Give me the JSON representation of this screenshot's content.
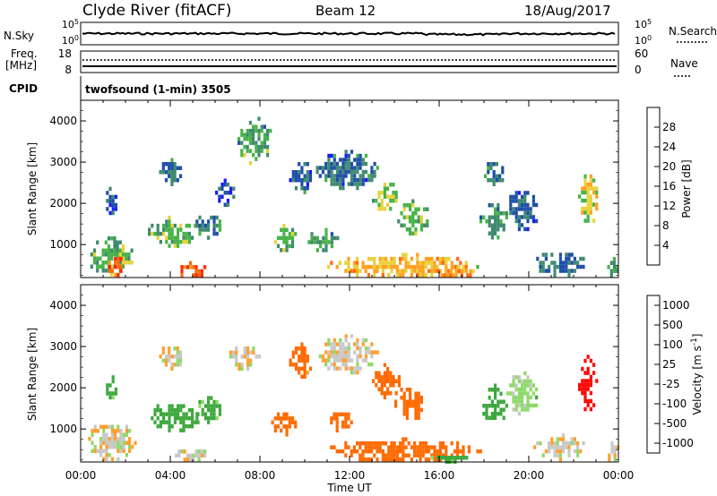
{
  "header": {
    "station": "Clyde River (fitACF)",
    "beam": "Beam 12",
    "date": "18/Aug/2017"
  },
  "strip_labels": {
    "nsky": "N.Sky",
    "nsearch": "N.Search",
    "freq": "Freq.",
    "freq_unit": "[MHz]",
    "nave": "Nave",
    "cpid": "CPID",
    "cpid_value": "twofsound (1-min) 3505",
    "nsky_ticks": [
      "10^5",
      "10^0"
    ],
    "nsearch_ticks": [
      "10^5",
      "10^0"
    ],
    "freq_ticks": [
      "18",
      "8"
    ],
    "nave_ticks": [
      "60",
      "0"
    ]
  },
  "colors": {
    "power": [
      "#1a1aff",
      "#1e4fa8",
      "#3f8a6e",
      "#47b347",
      "#e8d23a",
      "#ffa020",
      "#ff6a10",
      "#ff2a0a"
    ],
    "velocity": [
      "#ff0000",
      "#ff6a00",
      "#ffa030",
      "#c8c8c8",
      "#8ed96a",
      "#3ea83e",
      "#2e6e8e",
      "#1e3cb0"
    ]
  },
  "chart_data": [
    {
      "type": "heatmap",
      "title": "",
      "xlabel": "Time UT",
      "ylabel": "Slant Range [km]",
      "x_ticks": [
        "00:00",
        "04:00",
        "08:00",
        "12:00",
        "16:00",
        "20:00",
        "00:00"
      ],
      "xlim_hours": [
        0,
        24
      ],
      "ylim": [
        200,
        4500
      ],
      "y_ticks": [
        1000,
        2000,
        3000,
        4000
      ],
      "colorbar": {
        "label": "Power [dB]",
        "ticks": [
          "4",
          "8",
          "12",
          "16",
          "20",
          "24",
          "28"
        ],
        "range": [
          0,
          30
        ]
      },
      "regions": [
        {
          "t": [
            0.3,
            2.3
          ],
          "r": [
            300,
            1200
          ],
          "v": 14
        },
        {
          "t": [
            1.1,
            2.0
          ],
          "r": [
            300,
            800
          ],
          "v": 28
        },
        {
          "t": [
            1.0,
            1.6
          ],
          "r": [
            1800,
            2400
          ],
          "v": 6
        },
        {
          "t": [
            3.0,
            5.3
          ],
          "r": [
            1000,
            1700
          ],
          "v": 14
        },
        {
          "t": [
            3.5,
            4.5
          ],
          "r": [
            2500,
            3100
          ],
          "v": 8
        },
        {
          "t": [
            4.2,
            5.6
          ],
          "r": [
            250,
            600
          ],
          "v": 26
        },
        {
          "t": [
            5.0,
            6.3
          ],
          "r": [
            1200,
            1800
          ],
          "v": 9
        },
        {
          "t": [
            6.0,
            6.8
          ],
          "r": [
            2000,
            2600
          ],
          "v": 6
        },
        {
          "t": [
            7.0,
            8.5
          ],
          "r": [
            3000,
            4100
          ],
          "v": 12
        },
        {
          "t": [
            8.5,
            9.6
          ],
          "r": [
            900,
            1500
          ],
          "v": 13
        },
        {
          "t": [
            9.3,
            10.3
          ],
          "r": [
            2300,
            3100
          ],
          "v": 7
        },
        {
          "t": [
            10.0,
            11.5
          ],
          "r": [
            900,
            1400
          ],
          "v": 12
        },
        {
          "t": [
            10.5,
            13.2
          ],
          "r": [
            2400,
            3300
          ],
          "v": 8
        },
        {
          "t": [
            11.0,
            17.8
          ],
          "r": [
            250,
            800
          ],
          "v": 21
        },
        {
          "t": [
            13.0,
            14.2
          ],
          "r": [
            1800,
            2600
          ],
          "v": 16
        },
        {
          "t": [
            14.0,
            15.5
          ],
          "r": [
            1300,
            2100
          ],
          "v": 14
        },
        {
          "t": [
            15.8,
            17.5
          ],
          "r": [
            250,
            500
          ],
          "v": 24
        },
        {
          "t": [
            17.8,
            19.0
          ],
          "r": [
            1200,
            2100
          ],
          "v": 11
        },
        {
          "t": [
            18.0,
            18.8
          ],
          "r": [
            2400,
            3100
          ],
          "v": 8
        },
        {
          "t": [
            19.0,
            20.4
          ],
          "r": [
            1400,
            2400
          ],
          "v": 7
        },
        {
          "t": [
            20.2,
            22.5
          ],
          "r": [
            300,
            900
          ],
          "v": 8
        },
        {
          "t": [
            22.2,
            23.0
          ],
          "r": [
            1500,
            2800
          ],
          "v": 18
        },
        {
          "t": [
            23.5,
            24.0
          ],
          "r": [
            250,
            700
          ],
          "v": 12
        }
      ]
    },
    {
      "type": "heatmap",
      "title": "",
      "xlabel": "Time UT",
      "ylabel": "Slant Range [km]",
      "x_ticks": [
        "00:00",
        "04:00",
        "08:00",
        "12:00",
        "16:00",
        "20:00",
        "00:00"
      ],
      "xlim_hours": [
        0,
        24
      ],
      "ylim": [
        200,
        4500
      ],
      "y_ticks": [
        1000,
        2000,
        3000,
        4000
      ],
      "colorbar": {
        "label": "Velocity [m s^-1]",
        "ticks": [
          "-1000",
          "-500",
          "-100",
          "-25",
          "25",
          "100",
          "500",
          "1000"
        ],
        "range": [
          -1200,
          1200
        ]
      },
      "regions": [
        {
          "t": [
            0.2,
            2.4
          ],
          "r": [
            300,
            1200
          ],
          "v": 0
        },
        {
          "t": [
            1.0,
            1.6
          ],
          "r": [
            1800,
            2400
          ],
          "v": 150
        },
        {
          "t": [
            3.0,
            5.3
          ],
          "r": [
            1000,
            1700
          ],
          "v": 300
        },
        {
          "t": [
            3.5,
            4.5
          ],
          "r": [
            2500,
            3100
          ],
          "v": -10
        },
        {
          "t": [
            4.2,
            5.6
          ],
          "r": [
            250,
            600
          ],
          "v": 0
        },
        {
          "t": [
            5.0,
            6.3
          ],
          "r": [
            1200,
            1800
          ],
          "v": 150
        },
        {
          "t": [
            6.5,
            8.0
          ],
          "r": [
            2500,
            3100
          ],
          "v": -10
        },
        {
          "t": [
            8.5,
            9.6
          ],
          "r": [
            900,
            1500
          ],
          "v": -200
        },
        {
          "t": [
            9.3,
            10.3
          ],
          "r": [
            2300,
            3100
          ],
          "v": -150
        },
        {
          "t": [
            10.5,
            13.2
          ],
          "r": [
            2400,
            3300
          ],
          "v": 0
        },
        {
          "t": [
            11.0,
            17.8
          ],
          "r": [
            250,
            800
          ],
          "v": -200
        },
        {
          "t": [
            11.0,
            12.2
          ],
          "r": [
            1000,
            1500
          ],
          "v": -200
        },
        {
          "t": [
            13.0,
            14.2
          ],
          "r": [
            1800,
            2600
          ],
          "v": -300
        },
        {
          "t": [
            14.0,
            15.5
          ],
          "r": [
            1300,
            2100
          ],
          "v": -300
        },
        {
          "t": [
            15.5,
            17.5
          ],
          "r": [
            250,
            450
          ],
          "v": 150
        },
        {
          "t": [
            17.8,
            19.0
          ],
          "r": [
            1200,
            2100
          ],
          "v": 200
        },
        {
          "t": [
            19.0,
            20.4
          ],
          "r": [
            1400,
            2400
          ],
          "v": 50
        },
        {
          "t": [
            20.2,
            22.5
          ],
          "r": [
            300,
            900
          ],
          "v": 0
        },
        {
          "t": [
            22.2,
            23.0
          ],
          "r": [
            1500,
            2800
          ],
          "v": -800
        },
        {
          "t": [
            23.4,
            24.0
          ],
          "r": [
            250,
            700
          ],
          "v": -10
        }
      ]
    }
  ]
}
